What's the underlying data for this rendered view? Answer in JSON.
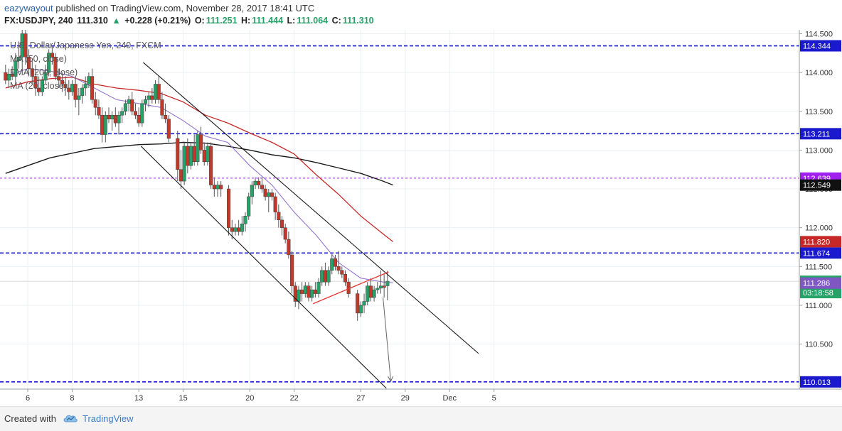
{
  "header": {
    "author": "eazywayout",
    "published": "published on TradingView.com, November 28, 2017 18:41 UTC",
    "symbol": "FX:USDJPY, 240",
    "last": "111.310",
    "change_arrow": "▲",
    "change": "+0.228 (+0.21%)",
    "open_label": "O:",
    "open": "111.251",
    "high_label": "H:",
    "high": "111.444",
    "low_label": "L:",
    "low": "111.064",
    "close_label": "C:",
    "close": "111.310"
  },
  "legend": {
    "title": "U.S. Dollar/Japanese Yen, 240, FXCM",
    "ma50": "MA (50, close)",
    "ema200": "EMA (200, close)",
    "ma20": "MA (20, close)"
  },
  "footer": {
    "created_with": "Created with",
    "brand": "TradingView",
    "logo_icon": "tradingview-cloud-icon"
  },
  "colors": {
    "up": "#26a269",
    "down": "#c0392b",
    "wick": "#555555",
    "ema200": "#1a1a1a",
    "ma50": "#c62828",
    "ma20": "#9575cd",
    "level": "#1a1acc",
    "level_purple": "#a020f0",
    "channel": "#1a1a1a",
    "trend_red": "#e53935"
  },
  "chart_data": {
    "type": "candlestick",
    "ylim": [
      109.92,
      114.55
    ],
    "yticks": [
      110.5,
      111.0,
      111.5,
      112.0,
      112.5,
      113.0,
      113.5,
      114.0,
      114.5
    ],
    "ytick_labels": [
      "110.500",
      "111.000",
      "111.500",
      "112.000",
      "112.500",
      "113.000",
      "113.500",
      "114.000",
      "114.500"
    ],
    "xlim": [
      4.75,
      40.75
    ],
    "xticks": [
      {
        "label": "6",
        "x": 6
      },
      {
        "label": "8",
        "x": 8
      },
      {
        "label": "13",
        "x": 11
      },
      {
        "label": "15",
        "x": 13
      },
      {
        "label": "20",
        "x": 16
      },
      {
        "label": "22",
        "x": 18
      },
      {
        "label": "27",
        "x": 21
      },
      {
        "label": "29",
        "x": 23
      },
      {
        "label": "Dec",
        "x": 25
      },
      {
        "label": "5",
        "x": 27
      }
    ],
    "horizontal_levels": [
      {
        "price": 114.344,
        "label": "114.344",
        "style": "blue"
      },
      {
        "price": 113.211,
        "label": "113.211",
        "style": "blue"
      },
      {
        "price": 112.639,
        "label": "112.639",
        "style": "purple"
      },
      {
        "price": 111.674,
        "label": "111.674",
        "style": "blue"
      },
      {
        "price": 110.013,
        "label": "110.013",
        "style": "blue"
      }
    ],
    "price_labels": [
      {
        "price": 112.549,
        "text": "112.549",
        "bg": "#111111"
      },
      {
        "price": 111.82,
        "text": "111.820",
        "bg": "#c62828"
      },
      {
        "price": 111.31,
        "text": "111.310",
        "bg": "#26a269",
        "sub": "03:18:58"
      },
      {
        "price": 111.286,
        "text": "111.286",
        "bg": "#7e57c2"
      }
    ],
    "channel_lines": [
      {
        "x1": 11.2,
        "y1": 114.13,
        "x2": 26.3,
        "y2": 110.38
      },
      {
        "x1": 11.1,
        "y1": 113.05,
        "x2": 22.15,
        "y2": 109.93
      }
    ],
    "trend_line": {
      "x1": 18.85,
      "y1": 111.02,
      "x2": 22.25,
      "y2": 111.43
    },
    "projection_arrow": {
      "x1": 22.0,
      "y1": 111.1,
      "x2": 22.35,
      "y2": 110.02
    },
    "ema200": [
      [
        5.0,
        112.7
      ],
      [
        7.0,
        112.9
      ],
      [
        9.0,
        113.02
      ],
      [
        11.0,
        113.07
      ],
      [
        12.0,
        113.08
      ],
      [
        13.0,
        113.1
      ],
      [
        14.0,
        113.09
      ],
      [
        15.0,
        113.05
      ],
      [
        16.0,
        113.0
      ],
      [
        17.0,
        112.94
      ],
      [
        18.0,
        112.9
      ],
      [
        19.0,
        112.84
      ],
      [
        20.0,
        112.77
      ],
      [
        21.0,
        112.7
      ],
      [
        22.0,
        112.6
      ],
      [
        22.45,
        112.55
      ]
    ],
    "ma50": [
      [
        5.0,
        113.8
      ],
      [
        6.0,
        113.88
      ],
      [
        7.0,
        113.92
      ],
      [
        8.0,
        113.94
      ],
      [
        9.0,
        113.85
      ],
      [
        10.0,
        113.8
      ],
      [
        11.0,
        113.77
      ],
      [
        12.0,
        113.73
      ],
      [
        13.0,
        113.62
      ],
      [
        14.0,
        113.45
      ],
      [
        15.0,
        113.35
      ],
      [
        16.0,
        113.22
      ],
      [
        17.0,
        113.1
      ],
      [
        18.0,
        112.95
      ],
      [
        19.0,
        112.68
      ],
      [
        20.0,
        112.43
      ],
      [
        21.0,
        112.15
      ],
      [
        22.0,
        111.92
      ],
      [
        22.45,
        111.82
      ]
    ],
    "ma20": [
      [
        5.0,
        113.95
      ],
      [
        6.0,
        114.05
      ],
      [
        7.0,
        114.02
      ],
      [
        8.0,
        113.95
      ],
      [
        9.0,
        113.8
      ],
      [
        10.0,
        113.65
      ],
      [
        11.0,
        113.6
      ],
      [
        12.0,
        113.55
      ],
      [
        13.0,
        113.38
      ],
      [
        14.0,
        113.18
      ],
      [
        15.0,
        113.1
      ],
      [
        16.0,
        112.8
      ],
      [
        17.0,
        112.55
      ],
      [
        18.0,
        112.2
      ],
      [
        19.0,
        111.9
      ],
      [
        20.0,
        111.55
      ],
      [
        21.0,
        111.35
      ],
      [
        22.0,
        111.3
      ],
      [
        22.45,
        111.29
      ]
    ],
    "candles": [
      {
        "x": 5.0,
        "o": 114.0,
        "h": 114.1,
        "l": 113.85,
        "c": 113.9
      },
      {
        "x": 5.15,
        "o": 113.9,
        "h": 114.05,
        "l": 113.8,
        "c": 113.98
      },
      {
        "x": 5.3,
        "o": 113.98,
        "h": 114.08,
        "l": 113.9,
        "c": 113.95
      },
      {
        "x": 5.45,
        "o": 113.95,
        "h": 114.25,
        "l": 113.85,
        "c": 114.15
      },
      {
        "x": 5.6,
        "o": 114.15,
        "h": 114.4,
        "l": 114.05,
        "c": 114.2
      },
      {
        "x": 5.75,
        "o": 114.2,
        "h": 114.55,
        "l": 114.0,
        "c": 114.5
      },
      {
        "x": 5.9,
        "o": 114.5,
        "h": 114.6,
        "l": 114.1,
        "c": 114.2
      },
      {
        "x": 6.05,
        "o": 114.2,
        "h": 114.3,
        "l": 113.95,
        "c": 114.05
      },
      {
        "x": 6.2,
        "o": 114.05,
        "h": 114.15,
        "l": 113.85,
        "c": 113.95
      },
      {
        "x": 6.35,
        "o": 113.95,
        "h": 114.1,
        "l": 113.7,
        "c": 113.8
      },
      {
        "x": 6.5,
        "o": 113.8,
        "h": 113.95,
        "l": 113.7,
        "c": 113.75
      },
      {
        "x": 6.65,
        "o": 113.75,
        "h": 113.95,
        "l": 113.7,
        "c": 113.9
      },
      {
        "x": 6.8,
        "o": 113.9,
        "h": 114.1,
        "l": 113.85,
        "c": 114.0
      },
      {
        "x": 6.95,
        "o": 114.0,
        "h": 114.3,
        "l": 113.95,
        "c": 114.25
      },
      {
        "x": 7.1,
        "o": 114.25,
        "h": 114.35,
        "l": 114.1,
        "c": 114.2
      },
      {
        "x": 7.25,
        "o": 114.2,
        "h": 114.25,
        "l": 113.9,
        "c": 113.95
      },
      {
        "x": 7.4,
        "o": 113.95,
        "h": 114.05,
        "l": 113.8,
        "c": 113.9
      },
      {
        "x": 7.55,
        "o": 113.9,
        "h": 114.0,
        "l": 113.75,
        "c": 113.85
      },
      {
        "x": 7.7,
        "o": 113.85,
        "h": 113.95,
        "l": 113.7,
        "c": 113.8
      },
      {
        "x": 7.85,
        "o": 113.8,
        "h": 113.9,
        "l": 113.65,
        "c": 113.75
      },
      {
        "x": 8.0,
        "o": 113.75,
        "h": 113.9,
        "l": 113.7,
        "c": 113.85
      },
      {
        "x": 8.15,
        "o": 113.85,
        "h": 113.95,
        "l": 113.55,
        "c": 113.65
      },
      {
        "x": 8.3,
        "o": 113.65,
        "h": 113.8,
        "l": 113.45,
        "c": 113.7
      },
      {
        "x": 8.45,
        "o": 113.7,
        "h": 113.85,
        "l": 113.6,
        "c": 113.8
      },
      {
        "x": 8.6,
        "o": 113.8,
        "h": 113.95,
        "l": 113.7,
        "c": 113.85
      },
      {
        "x": 8.75,
        "o": 113.85,
        "h": 114.0,
        "l": 113.8,
        "c": 113.95
      },
      {
        "x": 8.9,
        "o": 113.95,
        "h": 114.05,
        "l": 113.6,
        "c": 113.65
      },
      {
        "x": 9.05,
        "o": 113.65,
        "h": 113.75,
        "l": 113.45,
        "c": 113.55
      },
      {
        "x": 9.2,
        "o": 113.55,
        "h": 113.65,
        "l": 113.4,
        "c": 113.45
      },
      {
        "x": 9.35,
        "o": 113.45,
        "h": 113.55,
        "l": 113.1,
        "c": 113.2
      },
      {
        "x": 9.5,
        "o": 113.2,
        "h": 113.5,
        "l": 113.1,
        "c": 113.45
      },
      {
        "x": 9.65,
        "o": 113.45,
        "h": 113.55,
        "l": 113.35,
        "c": 113.4
      },
      {
        "x": 9.8,
        "o": 113.4,
        "h": 113.5,
        "l": 113.25,
        "c": 113.45
      },
      {
        "x": 9.95,
        "o": 113.45,
        "h": 113.55,
        "l": 113.3,
        "c": 113.35
      },
      {
        "x": 10.1,
        "o": 113.35,
        "h": 113.5,
        "l": 113.2,
        "c": 113.45
      },
      {
        "x": 10.25,
        "o": 113.45,
        "h": 113.55,
        "l": 113.35,
        "c": 113.5
      },
      {
        "x": 10.4,
        "o": 113.5,
        "h": 113.65,
        "l": 113.45,
        "c": 113.6
      },
      {
        "x": 10.55,
        "o": 113.6,
        "h": 113.7,
        "l": 113.5,
        "c": 113.65
      },
      {
        "x": 10.7,
        "o": 113.65,
        "h": 113.75,
        "l": 113.45,
        "c": 113.5
      },
      {
        "x": 10.85,
        "o": 113.5,
        "h": 113.6,
        "l": 113.4,
        "c": 113.45
      },
      {
        "x": 11.0,
        "o": 113.45,
        "h": 113.55,
        "l": 113.3,
        "c": 113.35
      },
      {
        "x": 11.15,
        "o": 113.35,
        "h": 113.65,
        "l": 113.3,
        "c": 113.6
      },
      {
        "x": 11.3,
        "o": 113.6,
        "h": 113.7,
        "l": 113.5,
        "c": 113.65
      },
      {
        "x": 11.45,
        "o": 113.65,
        "h": 113.75,
        "l": 113.55,
        "c": 113.7
      },
      {
        "x": 11.6,
        "o": 113.7,
        "h": 113.8,
        "l": 113.6,
        "c": 113.65
      },
      {
        "x": 11.75,
        "o": 113.65,
        "h": 113.9,
        "l": 113.6,
        "c": 113.85
      },
      {
        "x": 11.9,
        "o": 113.85,
        "h": 113.95,
        "l": 113.6,
        "c": 113.65
      },
      {
        "x": 12.05,
        "o": 113.65,
        "h": 113.75,
        "l": 113.4,
        "c": 113.45
      },
      {
        "x": 12.2,
        "o": 113.45,
        "h": 113.6,
        "l": 113.35,
        "c": 113.4
      },
      {
        "x": 12.35,
        "o": 113.4,
        "h": 113.45,
        "l": 113.1,
        "c": 113.15
      },
      {
        "x": 12.75,
        "o": 113.15,
        "h": 113.25,
        "l": 112.6,
        "c": 112.75
      },
      {
        "x": 12.9,
        "o": 112.75,
        "h": 113.0,
        "l": 112.5,
        "c": 112.6
      },
      {
        "x": 13.05,
        "o": 112.6,
        "h": 113.1,
        "l": 112.55,
        "c": 113.05
      },
      {
        "x": 13.2,
        "o": 113.05,
        "h": 113.15,
        "l": 112.7,
        "c": 112.8
      },
      {
        "x": 13.35,
        "o": 112.8,
        "h": 113.1,
        "l": 112.75,
        "c": 113.05
      },
      {
        "x": 13.5,
        "o": 113.05,
        "h": 113.2,
        "l": 112.8,
        "c": 112.85
      },
      {
        "x": 13.65,
        "o": 112.85,
        "h": 113.25,
        "l": 112.8,
        "c": 113.2
      },
      {
        "x": 13.8,
        "o": 113.2,
        "h": 113.3,
        "l": 112.95,
        "c": 113.0
      },
      {
        "x": 13.95,
        "o": 113.0,
        "h": 113.1,
        "l": 112.8,
        "c": 112.85
      },
      {
        "x": 14.1,
        "o": 112.85,
        "h": 113.1,
        "l": 112.8,
        "c": 113.05
      },
      {
        "x": 14.25,
        "o": 113.05,
        "h": 113.1,
        "l": 112.5,
        "c": 112.55
      },
      {
        "x": 14.4,
        "o": 112.55,
        "h": 112.65,
        "l": 112.4,
        "c": 112.5
      },
      {
        "x": 14.55,
        "o": 112.5,
        "h": 112.6,
        "l": 112.4,
        "c": 112.55
      },
      {
        "x": 14.7,
        "o": 112.55,
        "h": 112.6,
        "l": 112.4,
        "c": 112.5
      },
      {
        "x": 15.05,
        "o": 112.5,
        "h": 112.55,
        "l": 111.9,
        "c": 112.0
      },
      {
        "x": 15.2,
        "o": 112.0,
        "h": 112.1,
        "l": 111.85,
        "c": 111.95
      },
      {
        "x": 15.35,
        "o": 111.95,
        "h": 112.05,
        "l": 111.9,
        "c": 112.0
      },
      {
        "x": 15.5,
        "o": 112.0,
        "h": 112.1,
        "l": 111.9,
        "c": 111.95
      },
      {
        "x": 15.65,
        "o": 111.95,
        "h": 112.15,
        "l": 111.9,
        "c": 112.05
      },
      {
        "x": 15.8,
        "o": 112.05,
        "h": 112.2,
        "l": 111.95,
        "c": 112.15
      },
      {
        "x": 15.95,
        "o": 112.15,
        "h": 112.45,
        "l": 112.1,
        "c": 112.4
      },
      {
        "x": 16.1,
        "o": 112.4,
        "h": 112.6,
        "l": 112.3,
        "c": 112.55
      },
      {
        "x": 16.25,
        "o": 112.55,
        "h": 112.65,
        "l": 112.5,
        "c": 112.6
      },
      {
        "x": 16.4,
        "o": 112.6,
        "h": 112.65,
        "l": 112.5,
        "c": 112.55
      },
      {
        "x": 16.55,
        "o": 112.55,
        "h": 112.65,
        "l": 112.45,
        "c": 112.5
      },
      {
        "x": 16.7,
        "o": 112.5,
        "h": 112.55,
        "l": 112.35,
        "c": 112.4
      },
      {
        "x": 16.85,
        "o": 112.4,
        "h": 112.5,
        "l": 112.2,
        "c": 112.45
      },
      {
        "x": 17.0,
        "o": 112.45,
        "h": 112.5,
        "l": 112.35,
        "c": 112.4
      },
      {
        "x": 17.15,
        "o": 112.4,
        "h": 112.45,
        "l": 112.1,
        "c": 112.2
      },
      {
        "x": 17.3,
        "o": 112.2,
        "h": 112.3,
        "l": 112.0,
        "c": 112.1
      },
      {
        "x": 17.45,
        "o": 112.1,
        "h": 112.15,
        "l": 111.9,
        "c": 112.0
      },
      {
        "x": 17.6,
        "o": 112.0,
        "h": 112.05,
        "l": 111.8,
        "c": 111.85
      },
      {
        "x": 17.75,
        "o": 111.85,
        "h": 111.95,
        "l": 111.6,
        "c": 111.65
      },
      {
        "x": 17.9,
        "o": 111.65,
        "h": 111.7,
        "l": 111.15,
        "c": 111.25
      },
      {
        "x": 18.05,
        "o": 111.25,
        "h": 111.3,
        "l": 110.98,
        "c": 111.05
      },
      {
        "x": 18.2,
        "o": 111.05,
        "h": 111.25,
        "l": 110.95,
        "c": 111.2
      },
      {
        "x": 18.35,
        "o": 111.2,
        "h": 111.3,
        "l": 111.05,
        "c": 111.15
      },
      {
        "x": 18.5,
        "o": 111.15,
        "h": 111.3,
        "l": 111.1,
        "c": 111.25
      },
      {
        "x": 18.65,
        "o": 111.25,
        "h": 111.3,
        "l": 111.05,
        "c": 111.1
      },
      {
        "x": 18.8,
        "o": 111.1,
        "h": 111.25,
        "l": 111.05,
        "c": 111.2
      },
      {
        "x": 18.95,
        "o": 111.2,
        "h": 111.3,
        "l": 111.1,
        "c": 111.15
      },
      {
        "x": 19.1,
        "o": 111.15,
        "h": 111.35,
        "l": 111.1,
        "c": 111.3
      },
      {
        "x": 19.25,
        "o": 111.3,
        "h": 111.5,
        "l": 111.25,
        "c": 111.45
      },
      {
        "x": 19.4,
        "o": 111.45,
        "h": 111.55,
        "l": 111.25,
        "c": 111.3
      },
      {
        "x": 19.55,
        "o": 111.3,
        "h": 111.5,
        "l": 111.25,
        "c": 111.45
      },
      {
        "x": 19.7,
        "o": 111.45,
        "h": 111.65,
        "l": 111.4,
        "c": 111.6
      },
      {
        "x": 19.85,
        "o": 111.6,
        "h": 111.65,
        "l": 111.45,
        "c": 111.5
      },
      {
        "x": 20.0,
        "o": 111.5,
        "h": 111.7,
        "l": 111.4,
        "c": 111.45
      },
      {
        "x": 20.15,
        "o": 111.45,
        "h": 111.5,
        "l": 111.35,
        "c": 111.4
      },
      {
        "x": 20.3,
        "o": 111.4,
        "h": 111.45,
        "l": 111.25,
        "c": 111.3
      },
      {
        "x": 20.45,
        "o": 111.3,
        "h": 111.35,
        "l": 111.1,
        "c": 111.15
      },
      {
        "x": 20.85,
        "o": 111.15,
        "h": 111.2,
        "l": 110.8,
        "c": 110.9
      },
      {
        "x": 21.0,
        "o": 110.9,
        "h": 111.05,
        "l": 110.85,
        "c": 111.0
      },
      {
        "x": 21.15,
        "o": 111.0,
        "h": 111.15,
        "l": 110.9,
        "c": 111.05
      },
      {
        "x": 21.3,
        "o": 111.05,
        "h": 111.3,
        "l": 111.0,
        "c": 111.25
      },
      {
        "x": 21.45,
        "o": 111.25,
        "h": 111.35,
        "l": 111.05,
        "c": 111.1
      },
      {
        "x": 21.6,
        "o": 111.1,
        "h": 111.25,
        "l": 111.05,
        "c": 111.2
      },
      {
        "x": 21.75,
        "o": 111.2,
        "h": 111.3,
        "l": 111.15,
        "c": 111.22
      },
      {
        "x": 21.9,
        "o": 111.22,
        "h": 111.45,
        "l": 111.15,
        "c": 111.25
      },
      {
        "x": 22.05,
        "o": 111.25,
        "h": 111.4,
        "l": 111.1,
        "c": 111.23
      },
      {
        "x": 22.2,
        "o": 111.251,
        "h": 111.444,
        "l": 111.064,
        "c": 111.31
      }
    ]
  }
}
